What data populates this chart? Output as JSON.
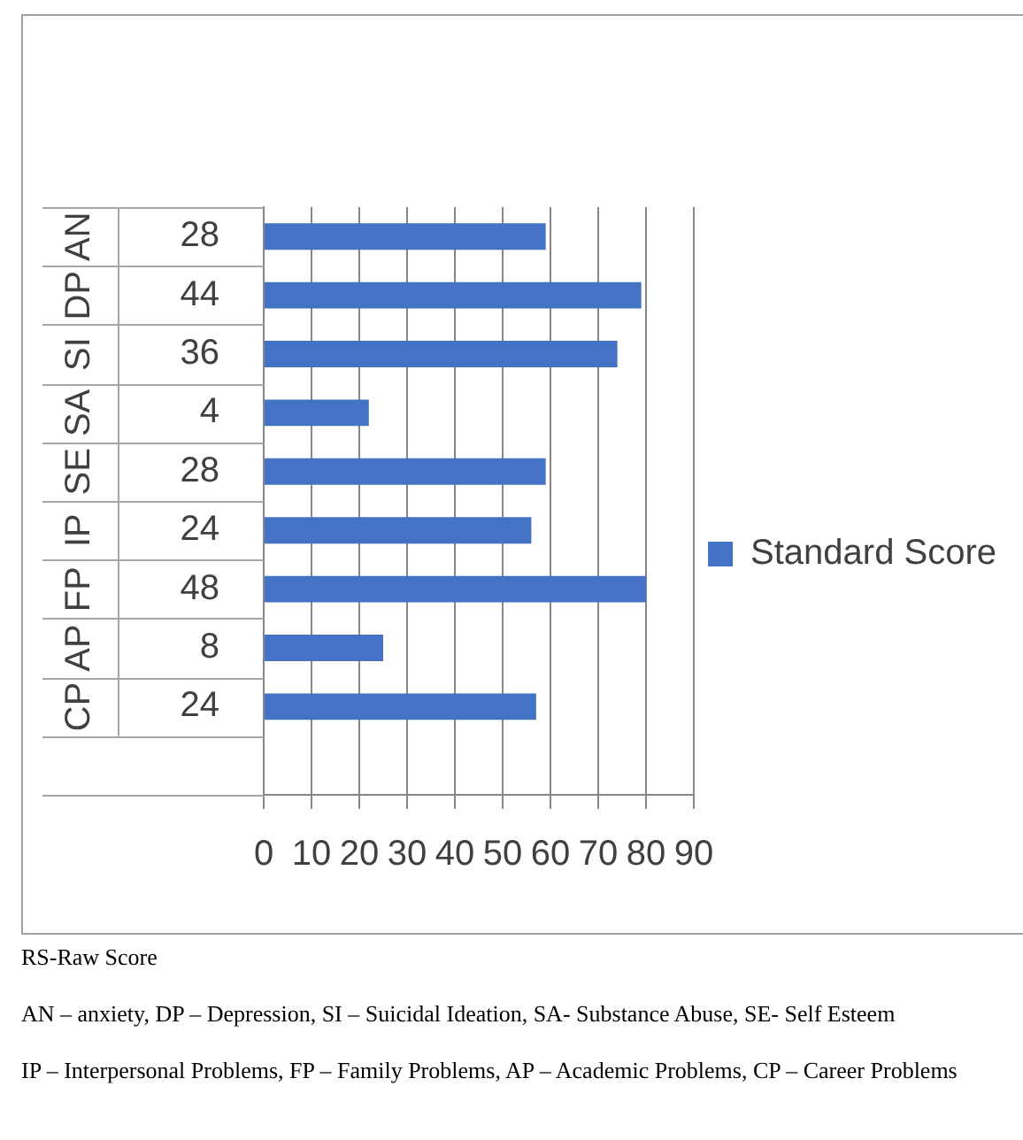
{
  "chart_data": {
    "type": "bar",
    "orientation": "horizontal",
    "categories": [
      "AN",
      "DP",
      "SI",
      "SA",
      "SE",
      "IP",
      "FP",
      "AP",
      "CP",
      null
    ],
    "series": [
      {
        "name": "Standard Score",
        "color": "#4472c4",
        "values": [
          59,
          79,
          74,
          22,
          59,
          56,
          80,
          25,
          57,
          null
        ]
      }
    ],
    "xlim": [
      0,
      90
    ],
    "xticks": [
      0,
      10,
      20,
      30,
      40,
      50,
      60,
      70,
      80,
      90
    ],
    "grid": "x",
    "legend": "right",
    "annotations": [
      "28",
      "44",
      "36",
      "4",
      "28",
      "24",
      "48",
      "8",
      "24",
      "RS-Raw Score",
      "AN – anxiety, DP – Depression, SI – Suicidal Ideation, SA- Substance Abuse, SE- Self Esteem",
      "IP – Interpersonal Problems, FP – Family Problems, AP – Academic Problems, CP – Career Problems"
    ]
  }
}
